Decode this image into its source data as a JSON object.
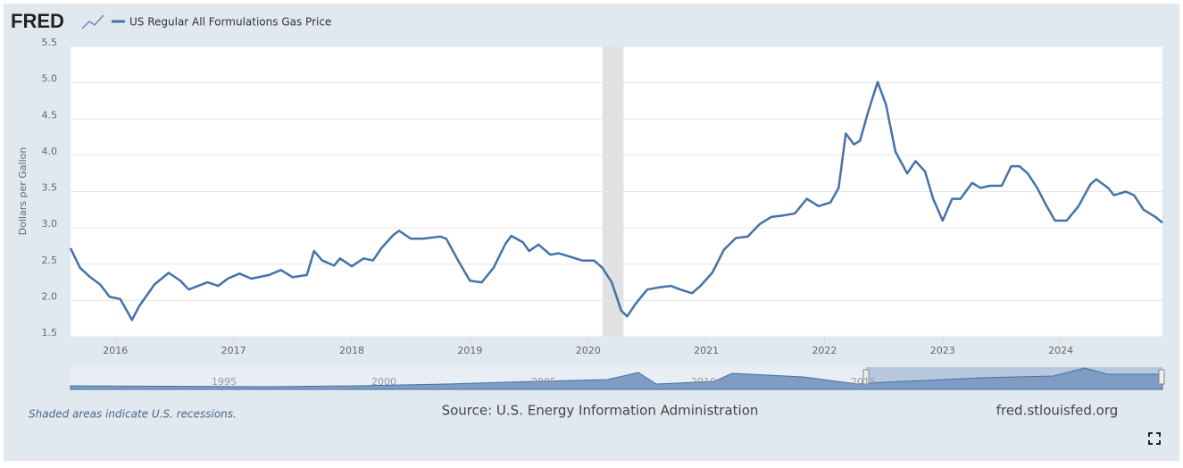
{
  "logo": "FRED",
  "chart_data": {
    "type": "line",
    "ylabel": "Dollars per Gallon",
    "x": [
      2015.62,
      2015.7,
      2015.78,
      2015.87,
      2015.95,
      2016.04,
      2016.1,
      2016.14,
      2016.2,
      2016.27,
      2016.33,
      2016.45,
      2016.55,
      2016.62,
      2016.7,
      2016.78,
      2016.87,
      2016.95,
      2017.05,
      2017.15,
      2017.3,
      2017.4,
      2017.5,
      2017.62,
      2017.68,
      2017.75,
      2017.85,
      2017.9,
      2018.0,
      2018.1,
      2018.18,
      2018.25,
      2018.35,
      2018.4,
      2018.5,
      2018.6,
      2018.75,
      2018.8,
      2018.9,
      2019.0,
      2019.1,
      2019.2,
      2019.3,
      2019.35,
      2019.45,
      2019.5,
      2019.58,
      2019.68,
      2019.75,
      2019.85,
      2019.95,
      2020.05,
      2020.12,
      2020.2,
      2020.28,
      2020.33,
      2020.4,
      2020.5,
      2020.6,
      2020.7,
      2020.78,
      2020.88,
      2020.95,
      2021.05,
      2021.15,
      2021.25,
      2021.35,
      2021.45,
      2021.55,
      2021.65,
      2021.75,
      2021.85,
      2021.95,
      2022.05,
      2022.12,
      2022.18,
      2022.25,
      2022.3,
      2022.37,
      2022.45,
      2022.52,
      2022.6,
      2022.7,
      2022.77,
      2022.85,
      2022.92,
      2023.0,
      2023.08,
      2023.15,
      2023.25,
      2023.32,
      2023.4,
      2023.5,
      2023.58,
      2023.65,
      2023.72,
      2023.8,
      2023.88,
      2023.95,
      2024.05,
      2024.15,
      2024.25,
      2024.3,
      2024.4,
      2024.45,
      2024.55,
      2024.62,
      2024.7,
      2024.8,
      2024.86
    ],
    "series": [
      {
        "name": "US Regular All Formulations Gas Price",
        "color": "#4572a7",
        "values": [
          2.72,
          2.45,
          2.33,
          2.22,
          2.05,
          2.02,
          1.85,
          1.73,
          1.92,
          2.08,
          2.22,
          2.38,
          2.27,
          2.15,
          2.2,
          2.25,
          2.2,
          2.3,
          2.37,
          2.3,
          2.35,
          2.42,
          2.32,
          2.35,
          2.68,
          2.55,
          2.48,
          2.58,
          2.47,
          2.58,
          2.55,
          2.72,
          2.9,
          2.96,
          2.85,
          2.85,
          2.88,
          2.85,
          2.55,
          2.27,
          2.25,
          2.45,
          2.78,
          2.89,
          2.8,
          2.68,
          2.77,
          2.63,
          2.65,
          2.6,
          2.55,
          2.55,
          2.45,
          2.25,
          1.86,
          1.78,
          1.95,
          2.15,
          2.18,
          2.2,
          2.15,
          2.1,
          2.2,
          2.38,
          2.7,
          2.86,
          2.88,
          3.05,
          3.15,
          3.17,
          3.2,
          3.4,
          3.3,
          3.35,
          3.55,
          4.3,
          4.15,
          4.2,
          4.6,
          5.01,
          4.7,
          4.05,
          3.75,
          3.92,
          3.78,
          3.4,
          3.1,
          3.4,
          3.4,
          3.62,
          3.55,
          3.58,
          3.58,
          3.85,
          3.85,
          3.75,
          3.55,
          3.3,
          3.1,
          3.1,
          3.3,
          3.6,
          3.67,
          3.55,
          3.45,
          3.5,
          3.45,
          3.25,
          3.15,
          3.07
        ]
      }
    ],
    "recessions": [
      [
        2020.12,
        2020.3
      ]
    ],
    "xlim": [
      2015.62,
      2024.86
    ],
    "xticks": [
      2016,
      2017,
      2018,
      2019,
      2020,
      2021,
      2022,
      2023,
      2024
    ],
    "ylim": [
      1.5,
      5.5
    ],
    "yticks": [
      1.5,
      {
        "value": 2,
        "label": "2.0"
      },
      2.5,
      {
        "value": 3,
        "label": "3.0"
      },
      3.5,
      {
        "value": 4,
        "label": "4.0"
      },
      4.5,
      {
        "value": 5,
        "label": "5.0"
      },
      5.5
    ],
    "grid": true,
    "navigator_labels": [
      "1995",
      "2000",
      "2005",
      "2010",
      "2015",
      "2020"
    ]
  },
  "footer": {
    "note": "Shaded areas indicate U.S. recessions.",
    "source": "Source: U.S. Energy Information Administration",
    "site": "fred.stlouisfed.org"
  }
}
